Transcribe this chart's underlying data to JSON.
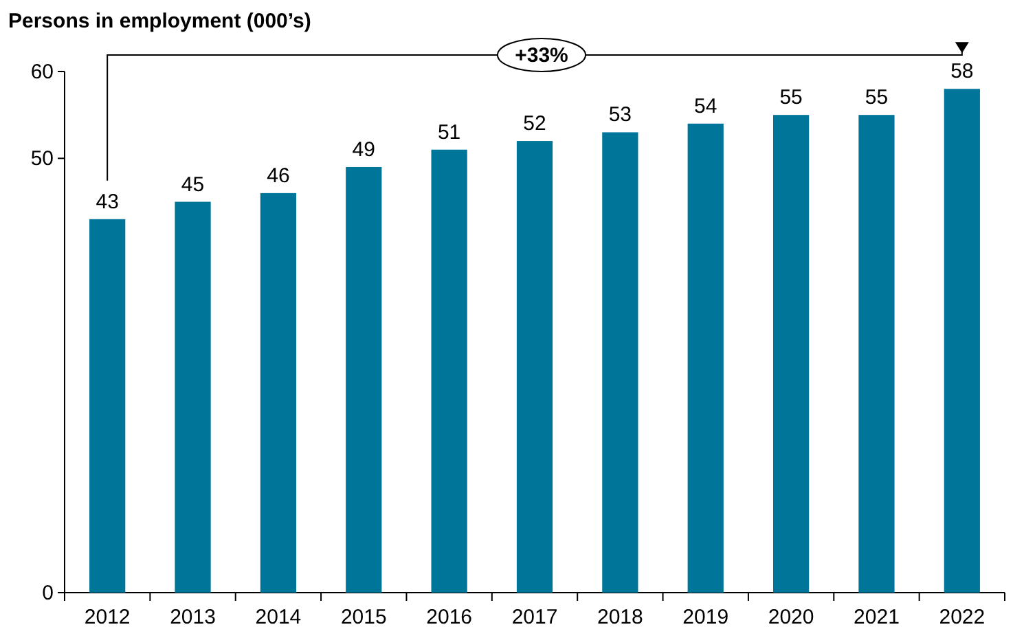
{
  "chart_data": {
    "type": "bar",
    "title": "Persons in employment (000’s)",
    "categories": [
      "2012",
      "2013",
      "2014",
      "2015",
      "2016",
      "2017",
      "2018",
      "2019",
      "2020",
      "2021",
      "2022"
    ],
    "values": [
      43,
      45,
      46,
      49,
      51,
      52,
      53,
      54,
      55,
      55,
      58
    ],
    "color": "#00759a",
    "ylim": [
      0,
      60
    ],
    "yticks": [
      0,
      50,
      60
    ],
    "data_labels": true,
    "grid": false,
    "annotations": [
      "+33%"
    ]
  }
}
